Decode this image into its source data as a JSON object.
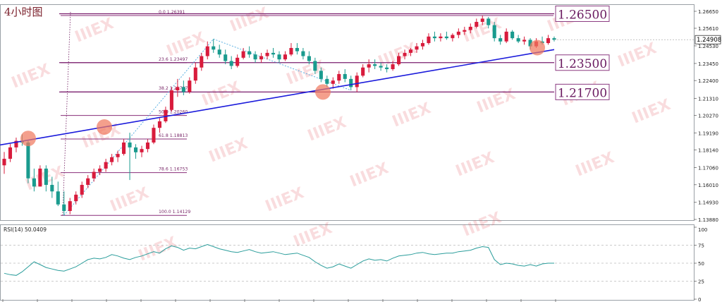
{
  "chart_data": {
    "type": "candlestick",
    "title": "4小时图",
    "instrument_timeframe": "4小时图",
    "y_axis_ticks": [
      "1.26650",
      "1.25610",
      "1.24530",
      "1.23450",
      "1.22400",
      "1.21310",
      "1.20270",
      "1.19190",
      "1.18140",
      "1.17060",
      "1.16010",
      "1.14930",
      "1.13880"
    ],
    "current_price": "1.24908",
    "ylim": [
      1.1388,
      1.2665
    ],
    "fib_levels": [
      {
        "ratio": "0.0",
        "price": "1.26391"
      },
      {
        "ratio": "23.6",
        "price": "1.23497"
      },
      {
        "ratio": "38.2",
        "price": "1.21707"
      },
      {
        "ratio": "50.0",
        "price": "1.20260"
      },
      {
        "ratio": "61.8",
        "price": "1.18813"
      },
      {
        "ratio": "78.6",
        "price": "1.16753"
      },
      {
        "ratio": "100.0",
        "price": "1.14129"
      }
    ],
    "key_levels": [
      "1.26500",
      "1.23500",
      "1.21700"
    ],
    "trendline": {
      "from": 1.1845,
      "to": 1.243
    },
    "candles": [
      [
        1.172,
        1.1802,
        1.1668,
        1.176
      ],
      [
        1.176,
        1.1851,
        1.174,
        1.183
      ],
      [
        1.183,
        1.189,
        1.18,
        1.187
      ],
      [
        1.187,
        1.191,
        1.184,
        1.186
      ],
      [
        1.186,
        1.187,
        1.161,
        1.164
      ],
      [
        1.164,
        1.17,
        1.156,
        1.159
      ],
      [
        1.159,
        1.172,
        1.159,
        1.17
      ],
      [
        1.17,
        1.172,
        1.156,
        1.16
      ],
      [
        1.16,
        1.165,
        1.152,
        1.156
      ],
      [
        1.156,
        1.162,
        1.147,
        1.148
      ],
      [
        1.148,
        1.156,
        1.1413,
        1.144
      ],
      [
        1.144,
        1.152,
        1.142,
        1.15
      ],
      [
        1.15,
        1.156,
        1.148,
        1.154
      ],
      [
        1.154,
        1.162,
        1.152,
        1.16
      ],
      [
        1.16,
        1.166,
        1.158,
        1.164
      ],
      [
        1.164,
        1.17,
        1.162,
        1.168
      ],
      [
        1.168,
        1.172,
        1.166,
        1.17
      ],
      [
        1.17,
        1.176,
        1.168,
        1.174
      ],
      [
        1.174,
        1.179,
        1.172,
        1.177
      ],
      [
        1.177,
        1.181,
        1.174,
        1.179
      ],
      [
        1.179,
        1.188,
        1.178,
        1.186
      ],
      [
        1.186,
        1.192,
        1.163,
        1.183
      ],
      [
        1.183,
        1.185,
        1.176,
        1.18
      ],
      [
        1.18,
        1.184,
        1.177,
        1.182
      ],
      [
        1.182,
        1.188,
        1.18,
        1.186
      ],
      [
        1.186,
        1.197,
        1.185,
        1.195
      ],
      [
        1.195,
        1.201,
        1.192,
        1.199
      ],
      [
        1.199,
        1.208,
        1.198,
        1.206
      ],
      [
        1.206,
        1.22,
        1.205,
        1.218
      ],
      [
        1.218,
        1.225,
        1.214,
        1.22
      ],
      [
        1.22,
        1.224,
        1.215,
        1.217
      ],
      [
        1.217,
        1.226,
        1.216,
        1.224
      ],
      [
        1.224,
        1.235,
        1.222,
        1.232
      ],
      [
        1.232,
        1.241,
        1.23,
        1.239
      ],
      [
        1.239,
        1.248,
        1.237,
        1.245
      ],
      [
        1.245,
        1.2495,
        1.241,
        1.243
      ],
      [
        1.243,
        1.246,
        1.238,
        1.24
      ],
      [
        1.24,
        1.243,
        1.234,
        1.236
      ],
      [
        1.236,
        1.239,
        1.231,
        1.233
      ],
      [
        1.233,
        1.24,
        1.232,
        1.238
      ],
      [
        1.238,
        1.244,
        1.237,
        1.242
      ],
      [
        1.242,
        1.245,
        1.238,
        1.24
      ],
      [
        1.24,
        1.242,
        1.235,
        1.237
      ],
      [
        1.237,
        1.241,
        1.235,
        1.239
      ],
      [
        1.239,
        1.243,
        1.237,
        1.241
      ],
      [
        1.241,
        1.244,
        1.238,
        1.24
      ],
      [
        1.24,
        1.242,
        1.235,
        1.237
      ],
      [
        1.237,
        1.242,
        1.236,
        1.24
      ],
      [
        1.24,
        1.247,
        1.239,
        1.244
      ],
      [
        1.244,
        1.247,
        1.24,
        1.242
      ],
      [
        1.242,
        1.244,
        1.237,
        1.239
      ],
      [
        1.239,
        1.242,
        1.234,
        1.236
      ],
      [
        1.236,
        1.238,
        1.228,
        1.23
      ],
      [
        1.23,
        1.232,
        1.223,
        1.225
      ],
      [
        1.225,
        1.227,
        1.22,
        1.222
      ],
      [
        1.222,
        1.226,
        1.219,
        1.224
      ],
      [
        1.224,
        1.23,
        1.222,
        1.228
      ],
      [
        1.228,
        1.231,
        1.223,
        1.225
      ],
      [
        1.225,
        1.227,
        1.218,
        1.22
      ],
      [
        1.22,
        1.229,
        1.217,
        1.227
      ],
      [
        1.227,
        1.234,
        1.226,
        1.232
      ],
      [
        1.232,
        1.237,
        1.229,
        1.234
      ],
      [
        1.234,
        1.237,
        1.231,
        1.233
      ],
      [
        1.233,
        1.235,
        1.23,
        1.232
      ],
      [
        1.232,
        1.234,
        1.229,
        1.231
      ],
      [
        1.231,
        1.236,
        1.23,
        1.234
      ],
      [
        1.234,
        1.241,
        1.233,
        1.239
      ],
      [
        1.239,
        1.243,
        1.237,
        1.241
      ],
      [
        1.241,
        1.244,
        1.239,
        1.243
      ],
      [
        1.243,
        1.247,
        1.241,
        1.245
      ],
      [
        1.245,
        1.249,
        1.243,
        1.247
      ],
      [
        1.247,
        1.253,
        1.246,
        1.251
      ],
      [
        1.251,
        1.254,
        1.248,
        1.25
      ],
      [
        1.25,
        1.253,
        1.248,
        1.251
      ],
      [
        1.251,
        1.254,
        1.249,
        1.25
      ],
      [
        1.25,
        1.253,
        1.248,
        1.252
      ],
      [
        1.252,
        1.256,
        1.25,
        1.254
      ],
      [
        1.254,
        1.257,
        1.252,
        1.255
      ],
      [
        1.255,
        1.259,
        1.253,
        1.257
      ],
      [
        1.257,
        1.262,
        1.256,
        1.26
      ],
      [
        1.26,
        1.2639,
        1.258,
        1.262
      ],
      [
        1.262,
        1.263,
        1.256,
        1.258
      ],
      [
        1.258,
        1.26,
        1.248,
        1.25
      ],
      [
        1.25,
        1.252,
        1.246,
        1.248
      ],
      [
        1.248,
        1.256,
        1.247,
        1.254
      ],
      [
        1.254,
        1.255,
        1.249,
        1.25
      ],
      [
        1.25,
        1.252,
        1.247,
        1.248
      ],
      [
        1.248,
        1.251,
        1.246,
        1.249
      ],
      [
        1.249,
        1.25,
        1.243,
        1.245
      ],
      [
        1.245,
        1.25,
        1.244,
        1.248
      ],
      [
        1.248,
        1.251,
        1.246,
        1.247
      ],
      [
        1.247,
        1.252,
        1.246,
        1.25
      ],
      [
        1.25,
        1.251,
        1.248,
        1.249
      ]
    ],
    "rsi": {
      "label": "RSI(14) 50.0409",
      "ticks": [
        "100",
        "75",
        "50",
        "25",
        "0"
      ],
      "ylim": [
        0,
        100
      ],
      "values": [
        36,
        34,
        33,
        38,
        45,
        52,
        48,
        44,
        42,
        40,
        39,
        42,
        45,
        50,
        55,
        57,
        56,
        58,
        62,
        60,
        57,
        55,
        58,
        60,
        63,
        66,
        64,
        70,
        74,
        72,
        68,
        71,
        70,
        73,
        76,
        73,
        70,
        68,
        66,
        65,
        67,
        69,
        66,
        64,
        65,
        66,
        64,
        62,
        63,
        64,
        61,
        58,
        52,
        47,
        43,
        45,
        49,
        46,
        43,
        48,
        53,
        56,
        54,
        55,
        53,
        57,
        60,
        61,
        62,
        64,
        65,
        63,
        62,
        63,
        64,
        64,
        66,
        67,
        68,
        71,
        73,
        72,
        55,
        48,
        50,
        49,
        47,
        46,
        48,
        46,
        49,
        50,
        50
      ]
    }
  }
}
